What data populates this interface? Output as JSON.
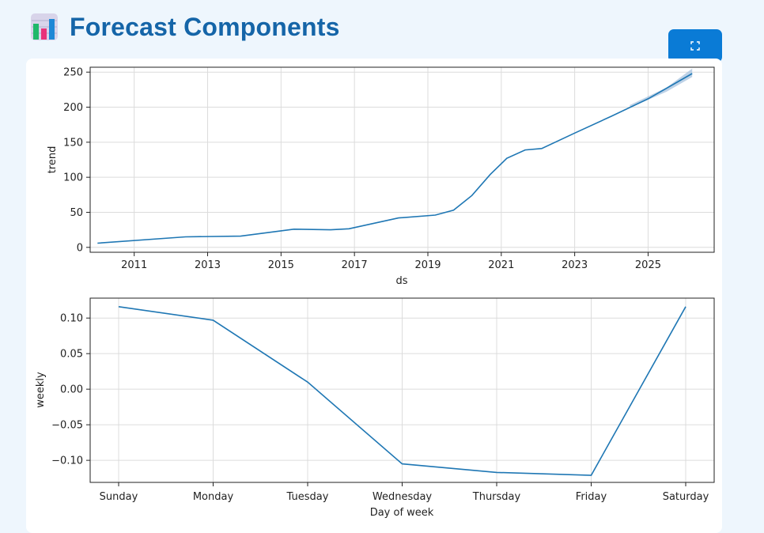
{
  "header": {
    "title": "Forecast Components",
    "icon": "bar-chart-icon"
  },
  "toolbar": {
    "fullscreen_icon": "expand-icon"
  },
  "colors": {
    "line": "#1f77b4",
    "title": "#1565a8",
    "button": "#0a7bd6",
    "band": "#a8c3df"
  },
  "chart_data": [
    {
      "type": "line",
      "xlabel": "ds",
      "ylabel": "trend",
      "x_ticks": [
        "2011",
        "2013",
        "2015",
        "2017",
        "2019",
        "2021",
        "2023",
        "2025"
      ],
      "y_ticks": [
        "0",
        "50",
        "100",
        "150",
        "200",
        "250"
      ],
      "xlim": [
        2009.8,
        2026.8
      ],
      "ylim": [
        -7,
        257
      ],
      "grid": true,
      "series": [
        {
          "x": [
            2010.0,
            2012.4,
            2013.9,
            2015.35,
            2016.35,
            2016.85,
            2018.2,
            2019.2,
            2019.7,
            2020.2,
            2020.7,
            2021.15,
            2021.65,
            2022.1,
            2023.0,
            2024.0,
            2025.0,
            2026.2
          ],
          "y": [
            6,
            15,
            16,
            26,
            25,
            26.5,
            42,
            46,
            53,
            74,
            104,
            127,
            139,
            141,
            163,
            187,
            212,
            248
          ],
          "band_upper": [
            2024.5,
            203,
            2025.5,
            228,
            2026.2,
            255
          ],
          "band_lower": [
            2024.5,
            199,
            2025.5,
            222,
            2026.2,
            243
          ]
        }
      ]
    },
    {
      "type": "line",
      "xlabel": "Day of week",
      "ylabel": "weekly",
      "categories": [
        "Sunday",
        "Monday",
        "Tuesday",
        "Wednesday",
        "Thursday",
        "Friday",
        "Saturday"
      ],
      "y_ticks": [
        "0.10",
        "0.05",
        "0.00",
        "−0.05",
        "−0.10"
      ],
      "ylim": [
        -0.131,
        0.128
      ],
      "grid": true,
      "series": [
        {
          "values": [
            0.116,
            0.097,
            0.01,
            -0.105,
            -0.117,
            -0.121,
            0.116
          ]
        }
      ]
    }
  ]
}
